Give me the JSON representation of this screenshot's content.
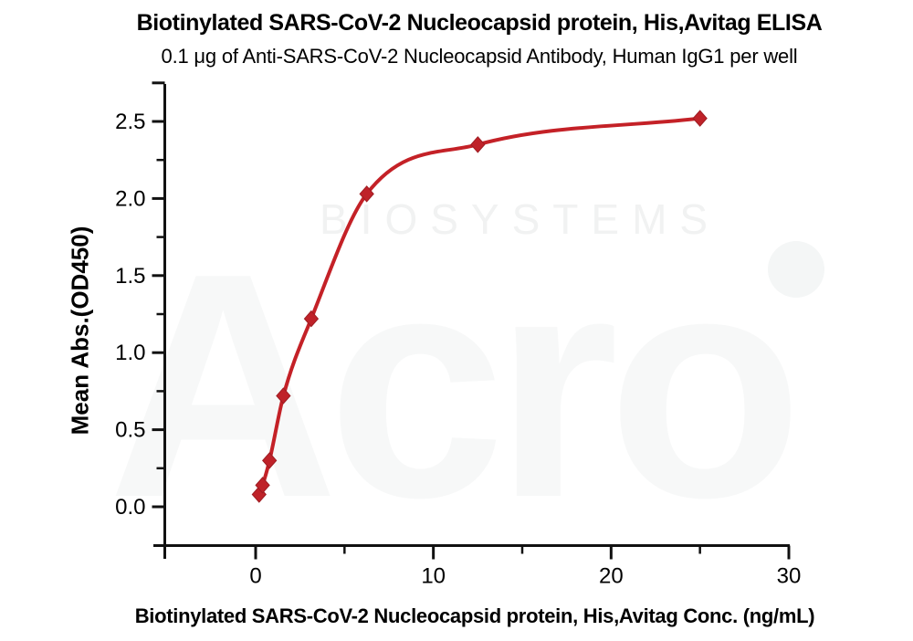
{
  "figure": {
    "title": "Biotinylated SARS-CoV-2 Nucleocapsid protein, His,Avitag ELISA",
    "subtitle": "0.1 μg of Anti-SARS-CoV-2 Nucleocapsid Antibody, Human IgG1 per well"
  },
  "watermark": {
    "brand": "Acro",
    "brand_sub": "BIOSYSTEMS"
  },
  "chart_data": {
    "type": "scatter",
    "title": "Biotinylated SARS-CoV-2 Nucleocapsid protein, His,Avitag ELISA",
    "subtitle": "0.1 μg of Anti-SARS-CoV-2 Nucleocapsid Antibody, Human IgG1 per well",
    "xlabel": "Biotinylated SARS-CoV-2 Nucleocapsid protein, His,Avitag Conc. (ng/mL)",
    "ylabel": "Mean Abs.(OD450)",
    "series": [
      {
        "name": "Anti-SARS-CoV-2 Nucleocapsid Antibody, Human IgG1",
        "x": [
          0.195,
          0.39,
          0.78,
          1.56,
          3.13,
          6.25,
          12.5,
          25
        ],
        "y": [
          0.08,
          0.14,
          0.3,
          0.72,
          1.22,
          2.03,
          2.35,
          2.52
        ]
      }
    ],
    "curve": "4PL sigmoidal fit through points",
    "marker_shape": "diamond",
    "grid": false,
    "legend": "none",
    "xaxis": {
      "range_shown": [
        0,
        30
      ],
      "major_ticks": {
        "values": [
          0,
          10,
          20,
          30
        ],
        "labels": [
          "0",
          "10",
          "20",
          "30"
        ]
      },
      "minor_ticks": [
        5,
        15,
        25
      ]
    },
    "yaxis": {
      "range_shown": [
        0,
        2.5
      ],
      "major_ticks": {
        "values": [
          0,
          0.5,
          1,
          1.5,
          2,
          2.5
        ],
        "labels": [
          "0.0",
          "0.5",
          "1.0",
          "1.5",
          "2.0",
          "2.5"
        ]
      },
      "minor_ticks": [
        0.25,
        0.75,
        1.25,
        1.75,
        2.25
      ],
      "axis_cap_tick": 2.75
    },
    "colors": {
      "curve": "#c42127",
      "marker": "#bf2229",
      "marker_edge": "#9e1c22",
      "axis": "#111111",
      "text": "#000000"
    }
  }
}
